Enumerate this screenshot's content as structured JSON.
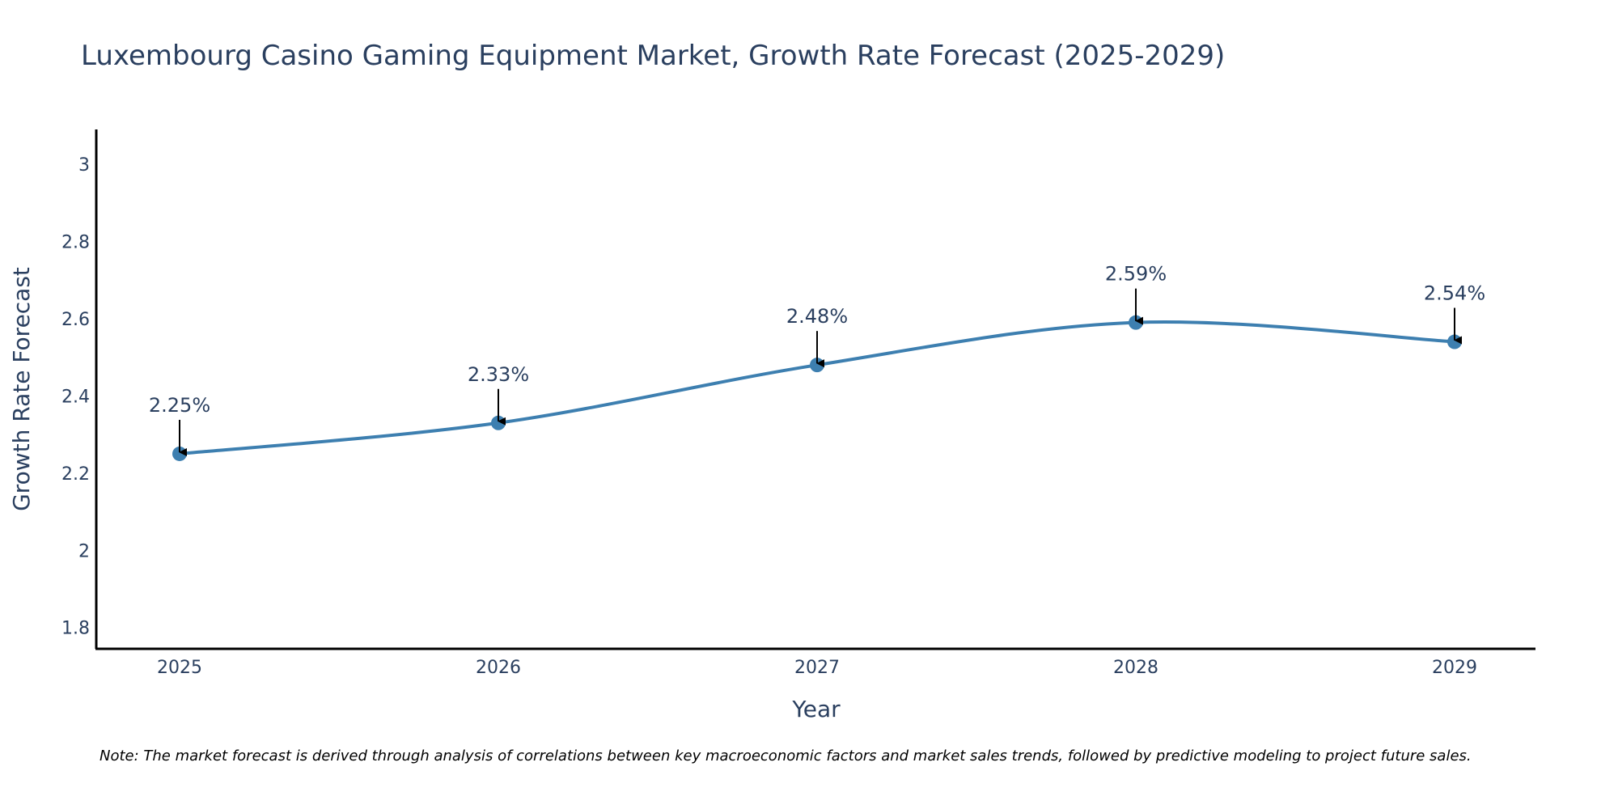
{
  "chart_data": {
    "type": "line",
    "title": "Luxembourg Casino Gaming Equipment Market, Growth Rate Forecast (2025-2029)",
    "xlabel": "Year",
    "ylabel": "Growth Rate Forecast",
    "categories": [
      "2025",
      "2026",
      "2027",
      "2028",
      "2029"
    ],
    "values": [
      2.25,
      2.33,
      2.48,
      2.59,
      2.54
    ],
    "data_labels": [
      "2.25%",
      "2.33%",
      "2.48%",
      "2.59%",
      "2.54%"
    ],
    "y_ticks": [
      "1.8",
      "2",
      "2.2",
      "2.4",
      "2.6",
      "2.8",
      "3"
    ],
    "y_tick_values": [
      1.8,
      2.0,
      2.2,
      2.4,
      2.6,
      2.8,
      3.0
    ],
    "ylim": [
      1.745,
      3.09
    ],
    "grid": false,
    "legend": "none",
    "line_shape": "spline",
    "series_color": "#3d7fb0",
    "annotation_arrows": true
  },
  "note": "Note: The market forecast is derived through analysis of correlations between key macroeconomic factors and market sales trends, followed by predictive modeling to project future sales."
}
